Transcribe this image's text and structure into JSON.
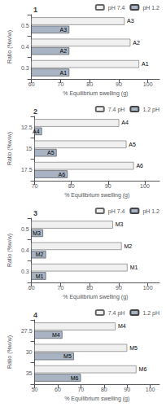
{
  "chart_data": [
    {
      "type": "bar",
      "orientation": "horizontal",
      "title": "1",
      "categories": [
        "0.3",
        "0.4",
        "0.5"
      ],
      "series": [
        {
          "name": "pH 7.4",
          "color": "#f0f0f0",
          "values": [
            97,
            94,
            92
          ]
        },
        {
          "name": "pH 1.2",
          "color": "#a8b4c4",
          "values": [
            73,
            73,
            73
          ]
        }
      ],
      "annotations": [
        "A1",
        "A2",
        "A3"
      ],
      "xlabel": "% Equilibrium swelling (g)",
      "ylabel": "Ratio (%w/w)",
      "xlim": [
        60,
        104
      ],
      "xticks": [
        60,
        70,
        80,
        90,
        100
      ],
      "legend": "upper right",
      "grid": false
    },
    {
      "type": "bar",
      "orientation": "horizontal",
      "title": "2",
      "categories": [
        "17.5",
        "15",
        "12.5"
      ],
      "series": [
        {
          "name": "7.4 pH",
          "color": "#f0f0f0",
          "values": [
            97,
            95,
            93
          ]
        },
        {
          "name": "1.2 pH",
          "color": "#a8b4c4",
          "values": [
            79,
            76,
            72
          ]
        }
      ],
      "annotations": [
        "A6",
        "A5",
        "A4"
      ],
      "xlabel": "% Equilibrium swelling (g)",
      "ylabel": "Ratio (%w/w)",
      "xlim": [
        70,
        104
      ],
      "xticks": [
        70,
        80,
        90,
        100
      ],
      "legend": "upper right",
      "grid": false
    },
    {
      "type": "bar",
      "orientation": "horizontal",
      "title": "3",
      "categories": [
        "0.3",
        "0.4",
        "0.5"
      ],
      "series": [
        {
          "name": "pH 7.4",
          "color": "#f0f0f0",
          "values": [
            93,
            91,
            88
          ]
        },
        {
          "name": "pH 1.2",
          "color": "#a8b4c4",
          "values": [
            65,
            65,
            64
          ]
        }
      ],
      "annotations": [
        "M1",
        "M2",
        "M3"
      ],
      "xlabel": "% Equilibrium swelling (g)",
      "ylabel": "Ratio (%w/w)",
      "xlim": [
        60,
        104
      ],
      "xticks": [
        60,
        70,
        80,
        90,
        100
      ],
      "legend": "upper right",
      "grid": false
    },
    {
      "type": "bar",
      "orientation": "horizontal",
      "title": "4",
      "categories": [
        "35",
        "30",
        "27.5"
      ],
      "series": [
        {
          "name": "7.4 pH",
          "color": "#f0f0f0",
          "values": [
            94,
            90,
            85
          ]
        },
        {
          "name": "1.2 pH",
          "color": "#a8b4c4",
          "values": [
            70,
            67,
            62
          ]
        }
      ],
      "annotations": [
        "M6",
        "M5",
        "M4"
      ],
      "xlabel": "% Equilibrium swelling (g)",
      "ylabel": "Ratio (%w/w)",
      "xlim": [
        50,
        104
      ],
      "xticks": [
        50,
        60,
        70,
        80,
        90,
        100
      ],
      "legend": "upper right",
      "grid": false
    }
  ]
}
